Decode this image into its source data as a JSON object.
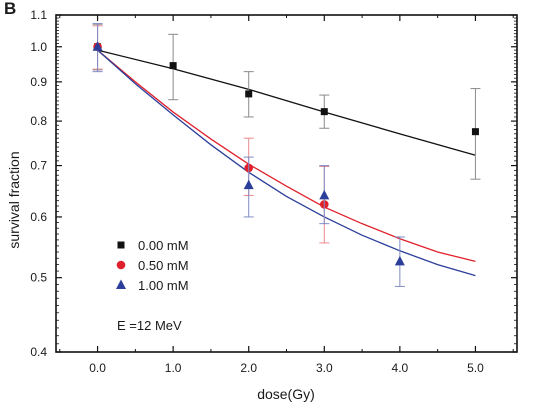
{
  "chart_data": {
    "type": "scatter",
    "panel_label": "B",
    "xlabel": "dose(Gy)",
    "ylabel": "survival fraction",
    "xlim": [
      -0.55,
      5.55
    ],
    "ylim": [
      0.4,
      1.1
    ],
    "yscale": "log",
    "x_ticks": [
      0,
      1,
      2,
      3,
      4,
      5
    ],
    "x_tick_labels": [
      "0.0",
      "1.0",
      "2.0",
      "3.0",
      "4.0",
      "5.0"
    ],
    "y_ticks": [
      0.4,
      0.5,
      0.6,
      0.7,
      0.8,
      0.9,
      1.0,
      1.1
    ],
    "y_tick_labels": [
      "0.4",
      "0.5",
      "0.6",
      "0.7",
      "0.8",
      "0.9",
      "1.0",
      "1.1"
    ],
    "grid": false,
    "legend_position": "lower-left",
    "annotation": "E =12 MeV",
    "series": [
      {
        "name": "0.00 mM",
        "marker": "square",
        "color": "#111111",
        "x": [
          0,
          1,
          2,
          3,
          5
        ],
        "y": [
          1.0,
          0.945,
          0.868,
          0.823,
          0.775
        ],
        "err_low": [
          0.933,
          0.853,
          0.81,
          0.783,
          0.672
        ],
        "err_high": [
          1.07,
          1.038,
          0.928,
          0.865,
          0.882
        ],
        "fit": {
          "x": [
            0,
            1,
            2,
            3,
            4,
            5
          ],
          "y": [
            0.99,
            0.936,
            0.88,
            0.822,
            0.77,
            0.722
          ]
        }
      },
      {
        "name": "0.50 mM",
        "marker": "circle",
        "color": "#e0202a",
        "x": [
          0,
          2,
          3
        ],
        "y": [
          1.0,
          0.695,
          0.623
        ],
        "err_low": [
          0.935,
          0.64,
          0.555
        ],
        "err_high": [
          1.065,
          0.76,
          0.698
        ],
        "fit": {
          "x": [
            0,
            0.5,
            1,
            1.5,
            2,
            2.5,
            3,
            3.5,
            4,
            4.5,
            5
          ],
          "y": [
            0.99,
            0.9,
            0.822,
            0.758,
            0.703,
            0.658,
            0.618,
            0.588,
            0.562,
            0.54,
            0.525
          ]
        }
      },
      {
        "name": "1.00 mM",
        "marker": "triangle",
        "color": "#2b3f9a",
        "x": [
          0,
          2,
          3,
          4
        ],
        "y": [
          1.0,
          0.66,
          0.64,
          0.525
        ],
        "err_low": [
          0.928,
          0.6,
          0.588,
          0.487
        ],
        "err_high": [
          1.072,
          0.718,
          0.7,
          0.565
        ],
        "fit": {
          "x": [
            0,
            0.5,
            1,
            1.5,
            2,
            2.5,
            3,
            3.5,
            4,
            4.5,
            5
          ],
          "y": [
            0.99,
            0.895,
            0.815,
            0.745,
            0.686,
            0.638,
            0.6,
            0.568,
            0.542,
            0.52,
            0.503
          ]
        }
      }
    ]
  }
}
